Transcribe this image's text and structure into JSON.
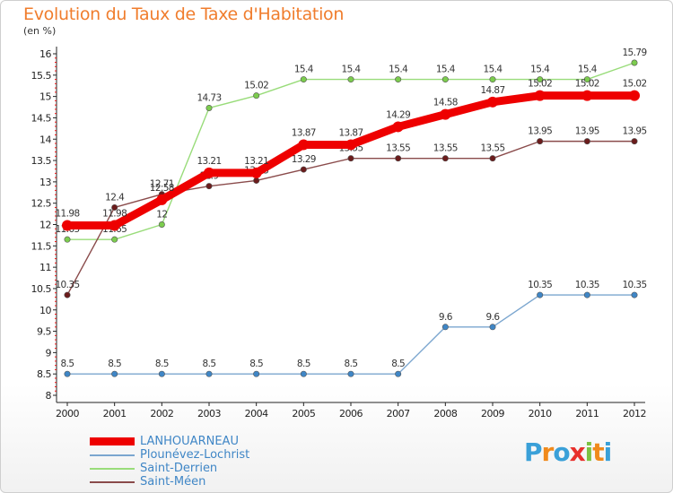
{
  "title": "Evolution du Taux de Taxe d'Habitation",
  "unit_label": "(en %)",
  "logo_text": "Proxiti",
  "logo_colors": [
    "#3aa0d8",
    "#f08a1c",
    "#3aa0d8",
    "#e8302c",
    "#7cc242",
    "#f08a1c",
    "#3aa0d8"
  ],
  "chart_data": {
    "type": "line",
    "x": [
      2000,
      2001,
      2002,
      2003,
      2004,
      2005,
      2006,
      2007,
      2008,
      2009,
      2010,
      2011,
      2012
    ],
    "ylim": [
      8,
      16
    ],
    "yticks": [
      8,
      8.5,
      9,
      9.5,
      10,
      10.5,
      11,
      11.5,
      12,
      12.5,
      13,
      13.5,
      14,
      14.5,
      15,
      15.5,
      16
    ],
    "ytick_labels": [
      "8",
      "8.5",
      "9",
      "9.5",
      "10",
      "10.5",
      "11",
      "11.5",
      "12",
      "12.5",
      "13",
      "13.5",
      "14",
      "14.5",
      "15",
      "15.5",
      "16"
    ],
    "grid": false,
    "legend_position": "bottom-left",
    "series": [
      {
        "name": "Plounévez-Lochrist",
        "color": "#7ba6cf",
        "marker_color": "#3f86c6",
        "emphasis": false,
        "values": [
          8.5,
          8.5,
          8.5,
          8.5,
          8.5,
          8.5,
          8.5,
          8.5,
          9.6,
          9.6,
          10.35,
          10.35,
          10.35
        ],
        "labels": [
          "8.5",
          "8.5",
          "8.5",
          "8.5",
          "8.5",
          "8.5",
          "8.5",
          "8.5",
          "9.6",
          "9.6",
          "10.35",
          "10.35",
          "10.35"
        ]
      },
      {
        "name": "Saint-Derrien",
        "color": "#99dc7a",
        "marker_color": "#7ccc4e",
        "emphasis": false,
        "values": [
          11.65,
          11.65,
          12,
          14.73,
          15.02,
          15.4,
          15.4,
          15.4,
          15.4,
          15.4,
          15.4,
          15.4,
          15.79
        ],
        "labels": [
          "11.65",
          "11.65",
          "12",
          "14.73",
          "15.02",
          "15.4",
          "15.4",
          "15.4",
          "15.4",
          "15.4",
          "15.4",
          "15.4",
          "15.79"
        ]
      },
      {
        "name": "Saint-Méen",
        "color": "#8a4b4b",
        "marker_color": "#6b1c1c",
        "emphasis": false,
        "values": [
          10.35,
          12.4,
          12.71,
          12.9,
          13.03,
          13.29,
          13.55,
          13.55,
          13.55,
          13.55,
          13.95,
          13.95,
          13.95
        ],
        "labels": [
          "10.35",
          "12.4",
          "12.71",
          "12.9",
          "13.03",
          "13.29",
          "13.55",
          "13.55",
          "13.55",
          "13.55",
          "13.95",
          "13.95",
          "13.95"
        ]
      },
      {
        "name": "LANHOUARNEAU",
        "color": "#ee0000",
        "marker_color": "#ee0000",
        "emphasis": true,
        "values": [
          11.98,
          11.98,
          12.58,
          13.21,
          13.21,
          13.87,
          13.87,
          14.29,
          14.58,
          14.87,
          15.02,
          15.02,
          15.02
        ],
        "labels": [
          "11.98",
          "11.98",
          "12.58",
          "13.21",
          "13.21",
          "13.87",
          "13.87",
          "14.29",
          "14.58",
          "14.87",
          "15.02",
          "15.02",
          "15.02"
        ]
      }
    ],
    "legend_order": [
      "LANHOUARNEAU",
      "Plounévez-Lochrist",
      "Saint-Derrien",
      "Saint-Méen"
    ]
  }
}
